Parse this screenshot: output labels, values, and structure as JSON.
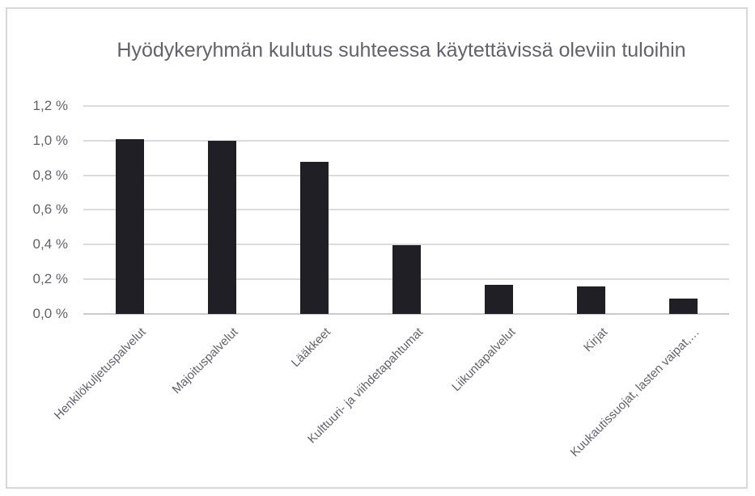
{
  "chart_data": {
    "type": "bar",
    "title": "Hyödykeryhmän kulutus suhteessa käytettävissä oleviin tuloihin",
    "categories": [
      "Henkilökuljetuspalvelut",
      "Majoituspalvelut",
      "Lääkkeet",
      "Kulttuuri- ja viihdetapahtumat",
      "Liikuntapalvelut",
      "Kirjat",
      "Kuukautissuojat, lasten vaipat,…"
    ],
    "values": [
      1.01,
      1.0,
      0.88,
      0.4,
      0.17,
      0.16,
      0.09
    ],
    "unit": "%",
    "decimal_separator": ",",
    "xlabel": "",
    "ylabel": "",
    "ylim": [
      0,
      1.2
    ],
    "ytick_step": 0.2,
    "ytick_labels_top_to_bottom": [
      "1,2 %",
      "1,0 %",
      "0,8 %",
      "0,6 %",
      "0,4 %",
      "0,2 %",
      "0,0 %"
    ],
    "grid": true,
    "legend": "none",
    "colors": {
      "bar": "#211f26",
      "gridline": "#dcdce0",
      "axis_line": "#c9c9cf",
      "text": "#62626e",
      "frame_border": "#d8d8dc",
      "background": "#ffffff"
    }
  }
}
